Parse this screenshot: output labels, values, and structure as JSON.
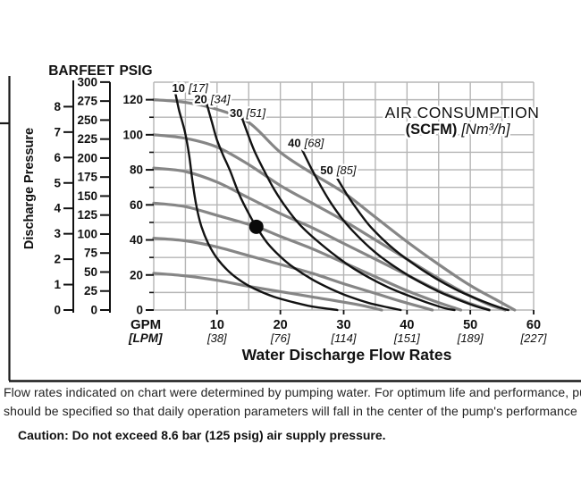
{
  "page": {
    "caption_line1": "Flow rates indicated on chart were determined by pumping water. For optimum life and performance, pump",
    "caption_line2": "should be specified so that daily operation parameters will fall in the center of the pump's performance curv",
    "caution": "Caution: Do not exceed 8.6 bar (125 psig) air supply pressure."
  },
  "chart_data": {
    "type": "line",
    "title": "AIR CONSUMPTION",
    "title_line2_bold": "(SCFM)",
    "title_line2_italic": "[Nm³/h]",
    "x_axis": {
      "unit_primary": "GPM",
      "unit_secondary": "[LPM]",
      "label": "Water Discharge Flow Rates",
      "range_gpm": [
        0,
        60
      ],
      "grid_step_gpm": 5,
      "ticks": [
        {
          "gpm": "10",
          "lpm": "[38]"
        },
        {
          "gpm": "20",
          "lpm": "[76]"
        },
        {
          "gpm": "30",
          "lpm": "[114]"
        },
        {
          "gpm": "40",
          "lpm": "[151]"
        },
        {
          "gpm": "50",
          "lpm": "[189]"
        },
        {
          "gpm": "60",
          "lpm": "[227]"
        }
      ]
    },
    "y_axis": {
      "label": "Discharge Pressure",
      "range_psig": [
        0,
        130
      ],
      "grid_step_psig": 10,
      "scales": [
        {
          "name": "BAR",
          "ticks": [
            8,
            7,
            6,
            5,
            4,
            3,
            2,
            1,
            0
          ]
        },
        {
          "name": "FEET",
          "ticks": [
            300,
            275,
            250,
            225,
            200,
            175,
            150,
            125,
            100,
            75,
            50,
            25,
            0
          ]
        },
        {
          "name": "PSIG",
          "ticks": [
            120,
            100,
            80,
            60,
            40,
            20,
            0
          ],
          "minor_ticks": [
            110,
            90,
            70,
            50,
            30,
            10
          ]
        }
      ]
    },
    "series_performance": [
      {
        "name": "air inlet 120 psig",
        "points": [
          [
            0,
            120
          ],
          [
            5,
            118.5
          ],
          [
            10,
            114.5
          ],
          [
            15,
            107
          ],
          [
            20,
            90
          ],
          [
            25,
            78
          ],
          [
            30,
            67
          ],
          [
            35,
            53
          ],
          [
            40,
            39
          ],
          [
            45,
            26
          ],
          [
            50,
            14
          ],
          [
            54,
            6
          ],
          [
            57,
            0
          ]
        ]
      },
      {
        "name": "air inlet 100 psig",
        "points": [
          [
            0,
            100
          ],
          [
            5,
            98
          ],
          [
            10,
            93
          ],
          [
            15,
            83
          ],
          [
            20,
            71
          ],
          [
            25,
            61
          ],
          [
            30,
            51
          ],
          [
            35,
            40
          ],
          [
            40,
            29
          ],
          [
            45,
            18
          ],
          [
            50,
            8
          ],
          [
            53,
            3
          ],
          [
            55.5,
            0
          ]
        ]
      },
      {
        "name": "air inlet 80 psig",
        "points": [
          [
            0,
            81
          ],
          [
            5,
            79
          ],
          [
            10,
            73
          ],
          [
            15,
            64
          ],
          [
            20,
            55
          ],
          [
            25,
            47
          ],
          [
            30,
            38
          ],
          [
            35,
            29
          ],
          [
            40,
            20
          ],
          [
            45,
            11
          ],
          [
            49,
            5
          ],
          [
            53,
            0
          ]
        ]
      },
      {
        "name": "air inlet 60 psig",
        "points": [
          [
            0,
            61
          ],
          [
            5,
            59
          ],
          [
            10,
            54
          ],
          [
            16.2,
            47.5
          ],
          [
            20,
            42
          ],
          [
            25,
            35
          ],
          [
            30,
            27
          ],
          [
            35,
            19
          ],
          [
            40,
            11
          ],
          [
            44,
            5.5
          ],
          [
            48.5,
            0
          ]
        ]
      },
      {
        "name": "air inlet 40 psig",
        "points": [
          [
            0,
            41
          ],
          [
            5,
            39.5
          ],
          [
            10,
            36
          ],
          [
            15,
            31
          ],
          [
            20,
            26
          ],
          [
            25,
            21
          ],
          [
            30,
            15
          ],
          [
            35,
            9.5
          ],
          [
            39,
            5
          ],
          [
            44,
            0
          ]
        ]
      },
      {
        "name": "air inlet 20 psig",
        "points": [
          [
            0,
            21
          ],
          [
            5,
            19.5
          ],
          [
            10,
            17
          ],
          [
            15,
            13.5
          ],
          [
            20,
            10.5
          ],
          [
            25,
            7.5
          ],
          [
            30,
            4.5
          ],
          [
            33,
            2.5
          ],
          [
            36,
            0
          ]
        ]
      }
    ],
    "series_air": [
      {
        "scfm": "10",
        "nm3h": "[17]",
        "label_at": [
          2.9,
          124.5
        ],
        "points": [
          [
            3.4,
            124
          ],
          [
            4,
            114
          ],
          [
            4.9,
            102
          ],
          [
            5.6,
            88
          ],
          [
            6.1,
            74
          ],
          [
            6.7,
            60
          ],
          [
            7.5,
            48
          ],
          [
            8.6,
            38
          ],
          [
            10,
            29.5
          ],
          [
            12,
            21.5
          ],
          [
            14,
            16
          ],
          [
            16,
            12
          ],
          [
            19,
            7.5
          ],
          [
            22,
            4.5
          ],
          [
            25,
            2
          ],
          [
            28,
            0.5
          ],
          [
            29,
            0
          ]
        ]
      },
      {
        "scfm": "20",
        "nm3h": "[34]",
        "label_at": [
          6.4,
          118
        ],
        "points": [
          [
            8.2,
            120
          ],
          [
            9.2,
            107
          ],
          [
            10,
            97
          ],
          [
            11,
            88
          ],
          [
            12,
            80
          ],
          [
            13.5,
            66
          ],
          [
            15,
            55
          ],
          [
            16.2,
            47.5
          ],
          [
            18,
            38
          ],
          [
            20,
            30.5
          ],
          [
            22,
            24.5
          ],
          [
            25,
            17.5
          ],
          [
            28,
            12
          ],
          [
            31,
            7.5
          ],
          [
            34,
            4
          ],
          [
            37,
            1.5
          ],
          [
            39,
            0
          ]
        ]
      },
      {
        "scfm": "30",
        "nm3h": "[51]",
        "label_at": [
          12.0,
          110
        ],
        "points": [
          [
            13.8,
            111
          ],
          [
            15,
            99
          ],
          [
            16,
            90
          ],
          [
            17.5,
            79
          ],
          [
            19,
            69
          ],
          [
            21,
            58
          ],
          [
            23,
            49
          ],
          [
            25,
            42
          ],
          [
            28,
            33
          ],
          [
            31,
            25
          ],
          [
            34,
            18.5
          ],
          [
            37,
            13
          ],
          [
            40,
            8.5
          ],
          [
            43,
            4.5
          ],
          [
            46,
            1
          ],
          [
            47.5,
            0
          ]
        ]
      },
      {
        "scfm": "40",
        "nm3h": "[68]",
        "label_at": [
          21.2,
          93
        ],
        "points": [
          [
            23.5,
            91
          ],
          [
            25,
            80
          ],
          [
            26.5,
            70
          ],
          [
            28,
            61
          ],
          [
            30,
            51
          ],
          [
            32,
            43
          ],
          [
            34,
            36
          ],
          [
            36,
            30
          ],
          [
            39,
            22.5
          ],
          [
            42,
            16
          ],
          [
            45,
            10.5
          ],
          [
            48,
            6
          ],
          [
            51,
            2
          ],
          [
            53,
            0
          ]
        ]
      },
      {
        "scfm": "50",
        "nm3h": "[85]",
        "label_at": [
          26.3,
          77.5
        ],
        "points": [
          [
            29,
            75
          ],
          [
            30.5,
            66
          ],
          [
            32,
            58
          ],
          [
            34,
            48.5
          ],
          [
            36,
            41
          ],
          [
            38,
            34.5
          ],
          [
            40,
            29
          ],
          [
            43,
            21.5
          ],
          [
            46,
            15
          ],
          [
            49,
            9.5
          ],
          [
            52,
            5
          ],
          [
            55,
            1
          ],
          [
            56,
            0
          ]
        ]
      }
    ],
    "marker": {
      "gpm": 16.2,
      "psig": 47.5
    },
    "colors": {
      "performance_curve": "#868686",
      "air_curve": "#121212",
      "grid": "#b5b5b5",
      "text": "#111111",
      "border": "#1a1a1a"
    }
  }
}
